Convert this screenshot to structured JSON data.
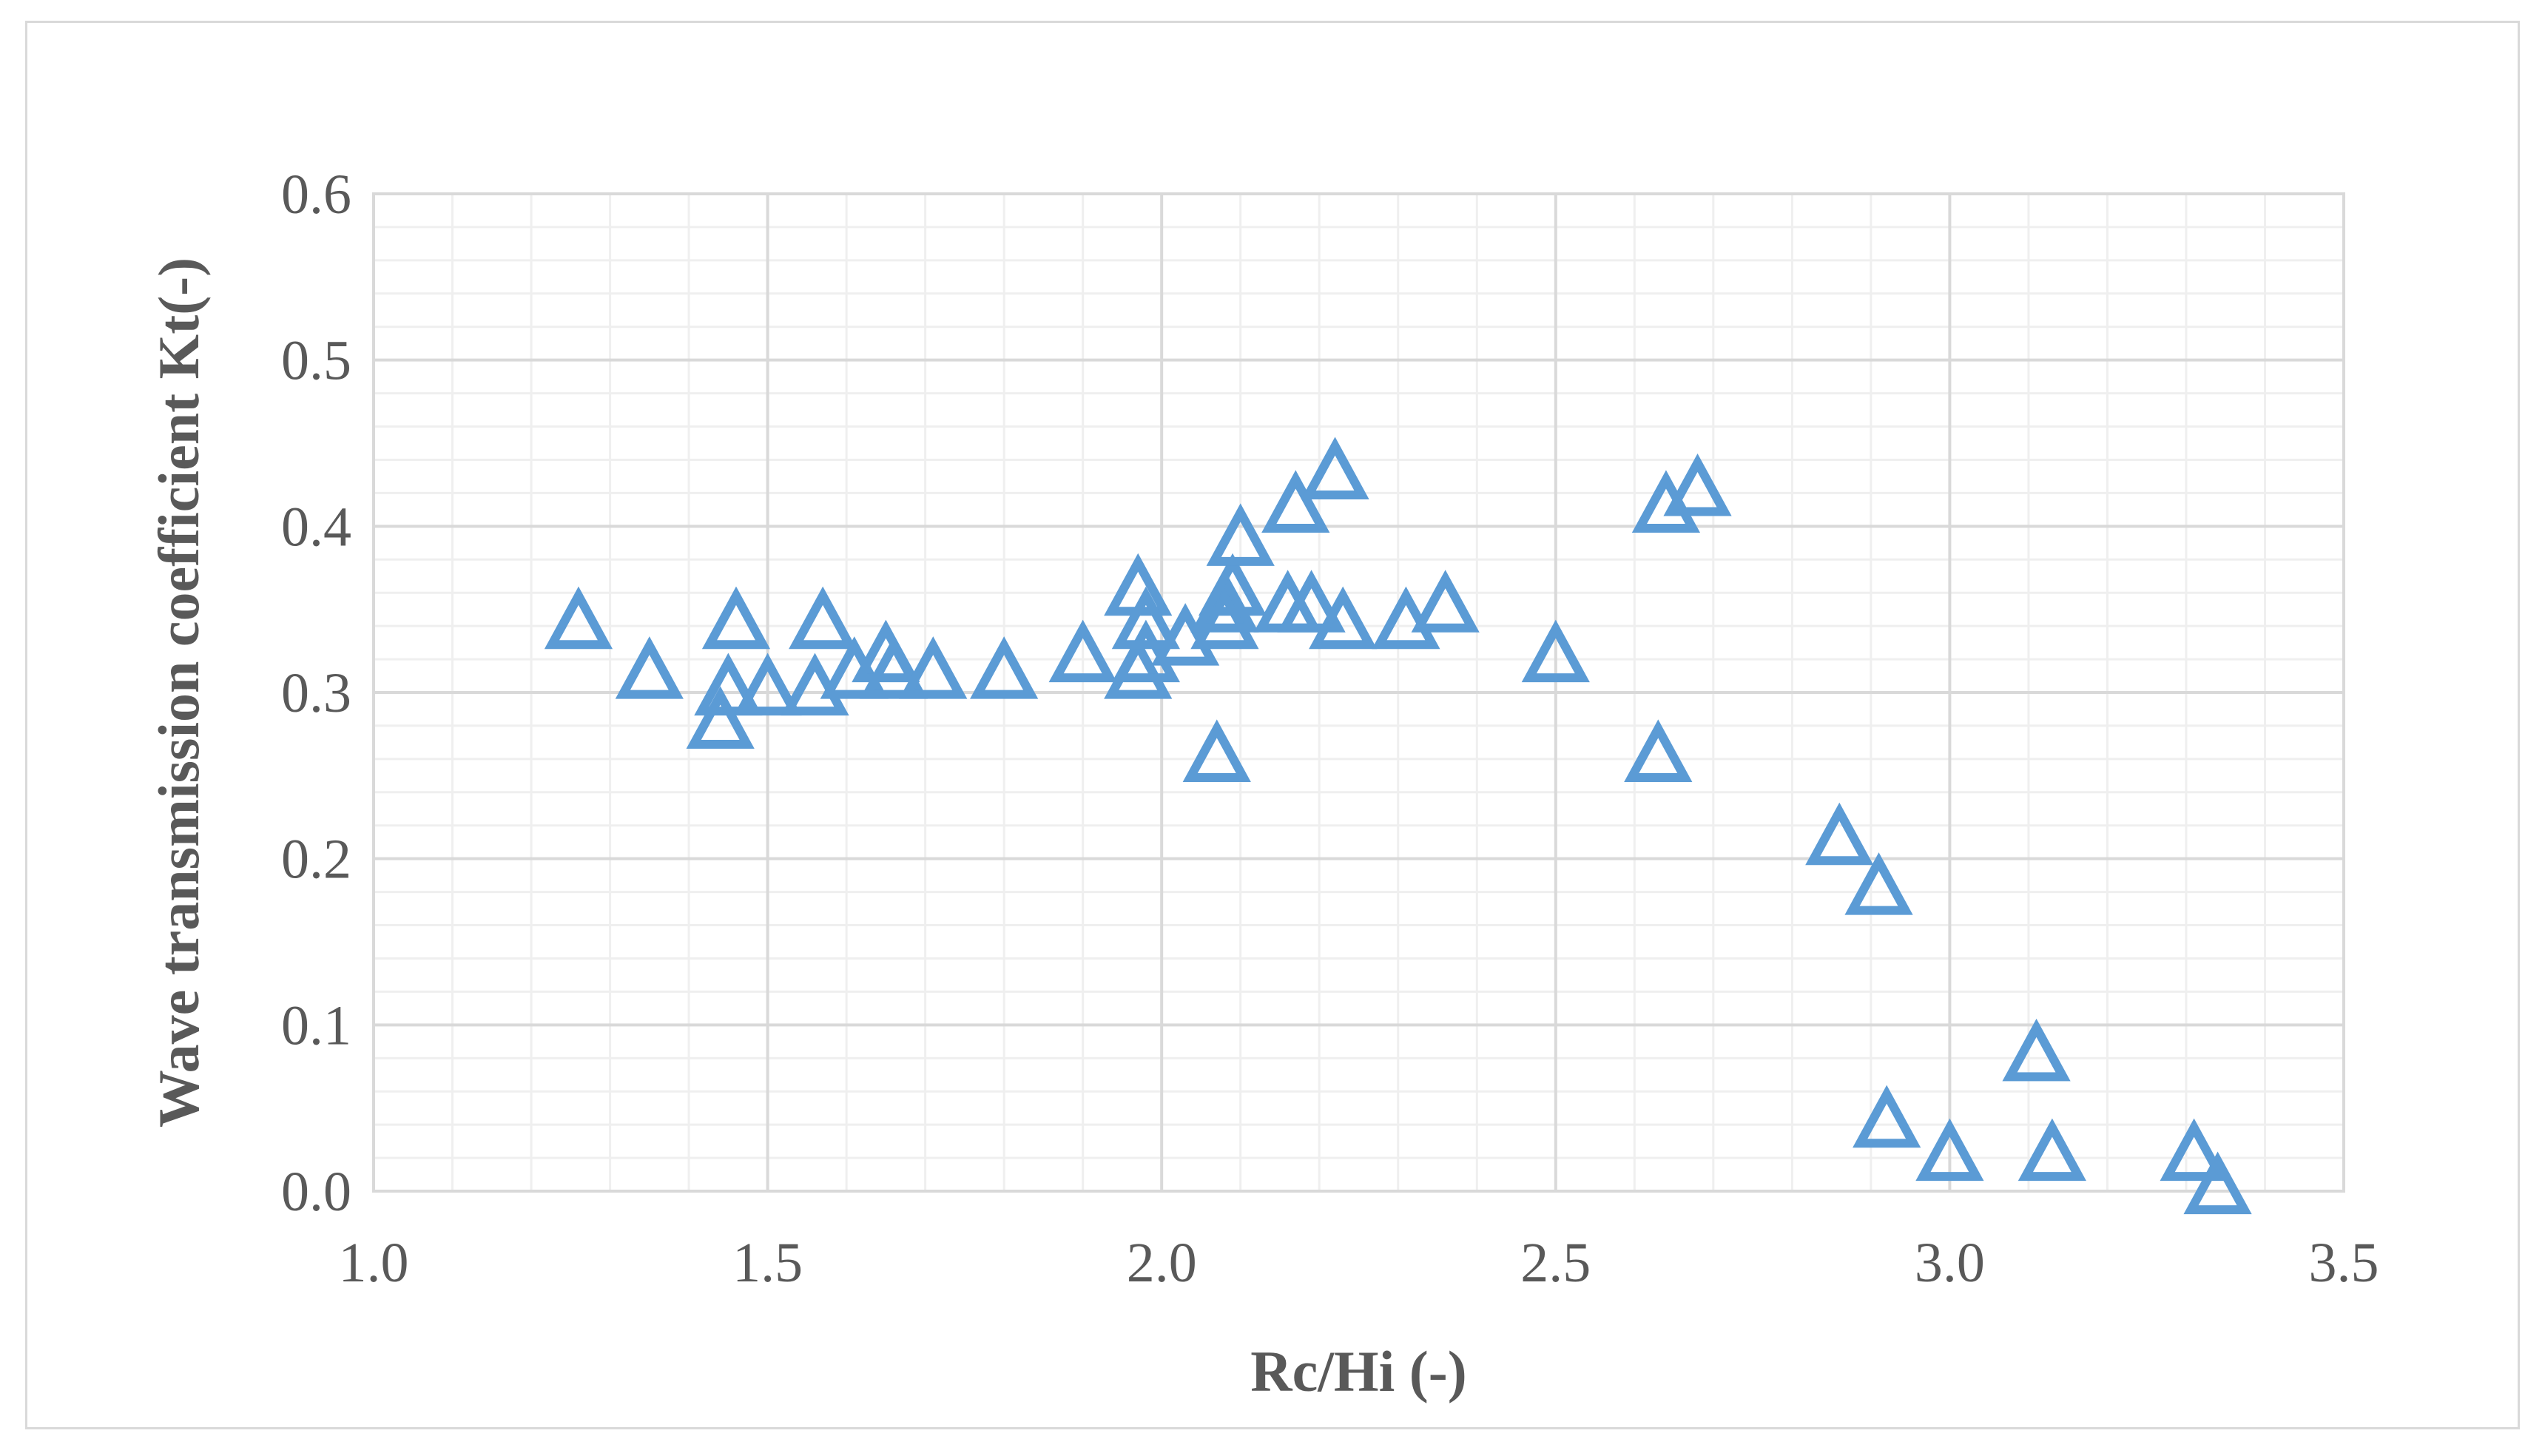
{
  "chart_data": {
    "type": "scatter",
    "title": "",
    "xlabel": "Rc/Hi (-)",
    "ylabel": "Wave transmission coefficient Kt(-)",
    "xlim": [
      1.0,
      3.5
    ],
    "ylim": [
      0.0,
      0.6
    ],
    "x_ticks": [
      "1.0",
      "1.5",
      "2.0",
      "2.5",
      "3.0",
      "3.5"
    ],
    "y_ticks": [
      "0.0",
      "0.1",
      "0.2",
      "0.3",
      "0.4",
      "0.5",
      "0.6"
    ],
    "grid": true,
    "minor_grid": true,
    "legend": "none",
    "marker": "open-triangle",
    "marker_color": "#5b9bd5",
    "series": [
      {
        "points": [
          [
            1.26,
            0.34
          ],
          [
            1.35,
            0.31
          ],
          [
            1.44,
            0.28
          ],
          [
            1.45,
            0.3
          ],
          [
            1.46,
            0.34
          ],
          [
            1.5,
            0.3
          ],
          [
            1.56,
            0.3
          ],
          [
            1.57,
            0.34
          ],
          [
            1.61,
            0.31
          ],
          [
            1.65,
            0.32
          ],
          [
            1.66,
            0.31
          ],
          [
            1.71,
            0.31
          ],
          [
            1.8,
            0.31
          ],
          [
            1.9,
            0.32
          ],
          [
            1.97,
            0.31
          ],
          [
            1.97,
            0.36
          ],
          [
            1.98,
            0.32
          ],
          [
            1.98,
            0.34
          ],
          [
            2.03,
            0.33
          ],
          [
            2.07,
            0.26
          ],
          [
            2.08,
            0.34
          ],
          [
            2.08,
            0.35
          ],
          [
            2.09,
            0.36
          ],
          [
            2.1,
            0.39
          ],
          [
            2.16,
            0.35
          ],
          [
            2.17,
            0.41
          ],
          [
            2.19,
            0.35
          ],
          [
            2.22,
            0.43
          ],
          [
            2.23,
            0.34
          ],
          [
            2.31,
            0.34
          ],
          [
            2.36,
            0.35
          ],
          [
            2.5,
            0.32
          ],
          [
            2.63,
            0.26
          ],
          [
            2.64,
            0.41
          ],
          [
            2.68,
            0.42
          ],
          [
            2.86,
            0.21
          ],
          [
            2.91,
            0.18
          ],
          [
            2.92,
            0.04
          ],
          [
            3.0,
            0.02
          ],
          [
            3.11,
            0.08
          ],
          [
            3.13,
            0.02
          ],
          [
            3.31,
            0.02
          ],
          [
            3.34,
            0.0
          ]
        ]
      }
    ]
  }
}
